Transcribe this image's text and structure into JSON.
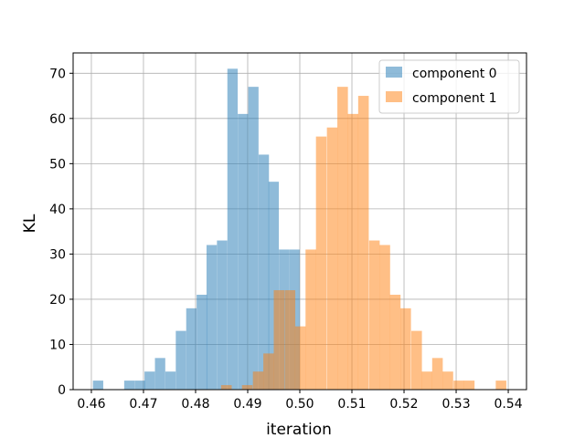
{
  "chart_data": {
    "type": "bar",
    "subtype": "overlapping-histogram",
    "title": "",
    "xlabel": "iteration",
    "ylabel": "KL",
    "xlim": [
      0.4565,
      0.5435
    ],
    "ylim": [
      0,
      74.5
    ],
    "xticks": [
      0.46,
      0.47,
      0.48,
      0.49,
      0.5,
      0.51,
      0.52,
      0.53,
      0.54
    ],
    "xtick_labels": [
      "0.46",
      "0.47",
      "0.48",
      "0.49",
      "0.50",
      "0.51",
      "0.52",
      "0.53",
      "0.54"
    ],
    "yticks": [
      0,
      10,
      20,
      30,
      40,
      50,
      60,
      70
    ],
    "ytick_labels": [
      "0",
      "10",
      "20",
      "30",
      "40",
      "50",
      "60",
      "70"
    ],
    "grid": true,
    "legend_position": "top-right",
    "series": [
      {
        "name": "component 0",
        "color": "#1f77b4",
        "alpha": 0.5,
        "bin_width": 0.00198,
        "bins": [
          [
            0.4603,
            2
          ],
          [
            0.4623,
            0
          ],
          [
            0.4643,
            0
          ],
          [
            0.4663,
            2
          ],
          [
            0.4683,
            2
          ],
          [
            0.4702,
            4
          ],
          [
            0.4722,
            7
          ],
          [
            0.4742,
            4
          ],
          [
            0.4762,
            13
          ],
          [
            0.4782,
            18
          ],
          [
            0.4802,
            21
          ],
          [
            0.4821,
            32
          ],
          [
            0.4841,
            33
          ],
          [
            0.4861,
            71
          ],
          [
            0.4881,
            61
          ],
          [
            0.4901,
            67
          ],
          [
            0.4921,
            52
          ],
          [
            0.494,
            46
          ],
          [
            0.496,
            31
          ],
          [
            0.498,
            31
          ]
        ]
      },
      {
        "name": "component 1",
        "color": "#ff7f0e",
        "alpha": 0.5,
        "bin_width": 0.00203,
        "bins": [
          [
            0.4849,
            1
          ],
          [
            0.4869,
            0
          ],
          [
            0.4889,
            1
          ],
          [
            0.491,
            4
          ],
          [
            0.493,
            8
          ],
          [
            0.495,
            22
          ],
          [
            0.4971,
            22
          ],
          [
            0.4991,
            14
          ],
          [
            0.5011,
            31
          ],
          [
            0.5031,
            56
          ],
          [
            0.5052,
            58
          ],
          [
            0.5072,
            67
          ],
          [
            0.5092,
            61
          ],
          [
            0.5112,
            65
          ],
          [
            0.5133,
            33
          ],
          [
            0.5153,
            32
          ],
          [
            0.5173,
            21
          ],
          [
            0.5193,
            18
          ],
          [
            0.5214,
            13
          ],
          [
            0.5234,
            4
          ],
          [
            0.5254,
            7
          ],
          [
            0.5274,
            4
          ],
          [
            0.5295,
            2
          ],
          [
            0.5315,
            2
          ],
          [
            0.5335,
            0
          ],
          [
            0.5355,
            0
          ],
          [
            0.5376,
            2
          ]
        ]
      }
    ]
  }
}
